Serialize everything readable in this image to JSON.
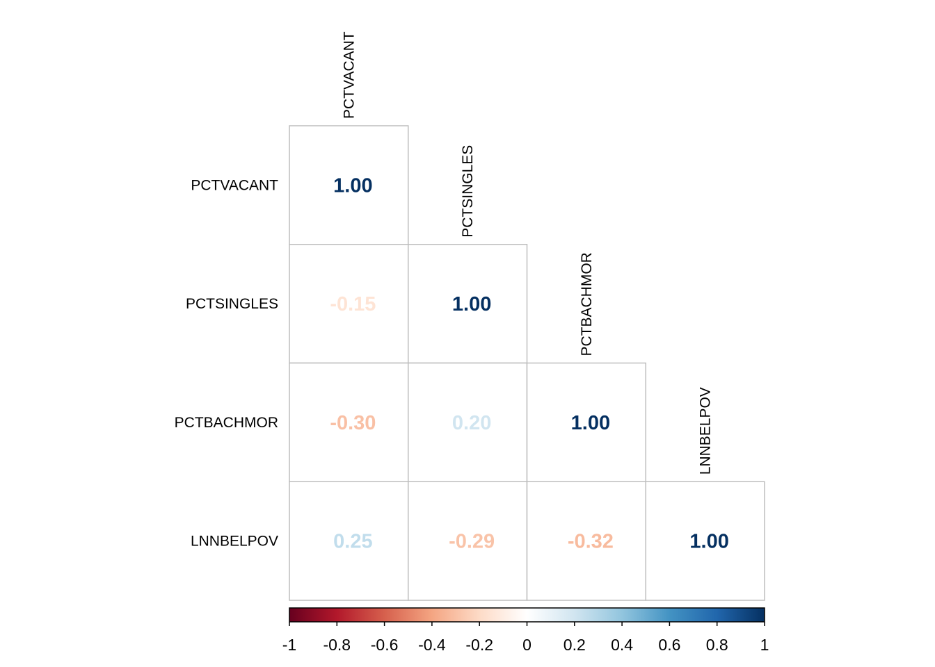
{
  "chart_data": {
    "type": "heatmap",
    "subtype": "correlation-matrix-lower-triangle",
    "variables": [
      "PCTVACANT",
      "PCTSINGLES",
      "PCTBACHMOR",
      "LNNBELPOV"
    ],
    "matrix": [
      [
        1.0,
        null,
        null,
        null
      ],
      [
        -0.15,
        1.0,
        null,
        null
      ],
      [
        -0.3,
        0.2,
        1.0,
        null
      ],
      [
        0.25,
        -0.29,
        -0.32,
        1.0
      ]
    ],
    "value_labels": [
      [
        "1.00",
        "",
        "",
        ""
      ],
      [
        "-0.15",
        "1.00",
        "",
        ""
      ],
      [
        "-0.30",
        "0.20",
        "1.00",
        ""
      ],
      [
        "0.25",
        "-0.29",
        "-0.32",
        "1.00"
      ]
    ],
    "color_scale": {
      "range": [
        -1,
        1
      ],
      "stops": [
        "#67001F",
        "#B2182B",
        "#D6604D",
        "#F4A582",
        "#FDDBC7",
        "#FFFFFF",
        "#D1E5F0",
        "#92C5DE",
        "#4393C3",
        "#2166AC",
        "#053061"
      ]
    },
    "colorbar": {
      "orientation": "horizontal",
      "position": "bottom",
      "ticks": [
        -1,
        -0.8,
        -0.6,
        -0.4,
        -0.2,
        0,
        0.2,
        0.4,
        0.6,
        0.8,
        1
      ],
      "tick_labels": [
        "-1",
        "-0.8",
        "-0.6",
        "-0.4",
        "-0.2",
        "0",
        "0.2",
        "0.4",
        "0.6",
        "0.8",
        "1"
      ]
    },
    "grid": true,
    "cell_border_color": "#BEBEBE"
  }
}
